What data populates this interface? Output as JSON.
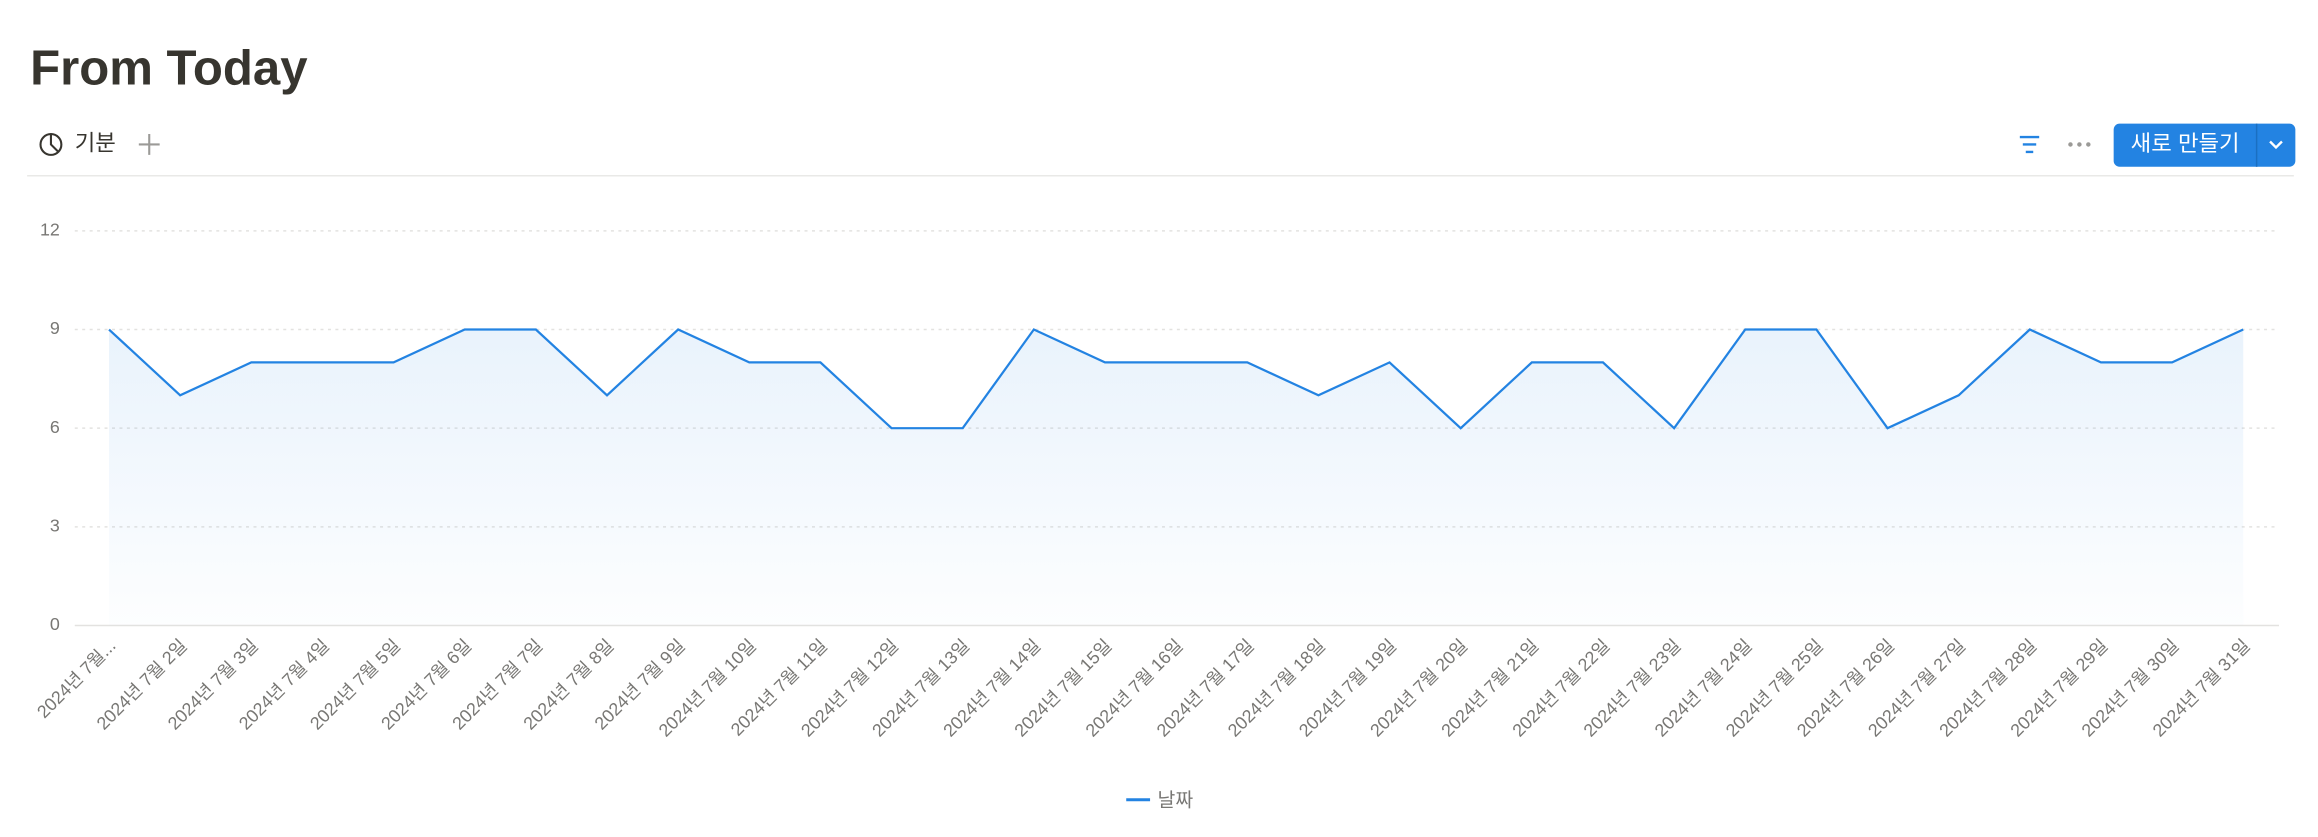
{
  "header": {
    "title": "From Today",
    "view_tab": "기분",
    "new_button": "새로 만들기"
  },
  "chart_data": {
    "type": "line",
    "categories": [
      "2024년 7월...",
      "2024년 7월 2일",
      "2024년 7월 3일",
      "2024년 7월 4일",
      "2024년 7월 5일",
      "2024년 7월 6일",
      "2024년 7월 7일",
      "2024년 7월 8일",
      "2024년 7월 9일",
      "2024년 7월 10일",
      "2024년 7월 11일",
      "2024년 7월 12일",
      "2024년 7월 13일",
      "2024년 7월 14일",
      "2024년 7월 15일",
      "2024년 7월 16일",
      "2024년 7월 17일",
      "2024년 7월 18일",
      "2024년 7월 19일",
      "2024년 7월 20일",
      "2024년 7월 21일",
      "2024년 7월 22일",
      "2024년 7월 23일",
      "2024년 7월 24일",
      "2024년 7월 25일",
      "2024년 7월 26일",
      "2024년 7월 27일",
      "2024년 7월 28일",
      "2024년 7월 29일",
      "2024년 7월 30일",
      "2024년 7월 31일"
    ],
    "series": [
      {
        "name": "날짜",
        "color": "#2383e2",
        "values": [
          9,
          7,
          8,
          8,
          8,
          9,
          9,
          7,
          9,
          8,
          8,
          6,
          6,
          9,
          8,
          8,
          8,
          7,
          8,
          6,
          8,
          8,
          6,
          9,
          9,
          6,
          7,
          9,
          8,
          8,
          9
        ]
      }
    ],
    "ylim": [
      0,
      12
    ],
    "yticks": [
      0,
      3,
      6,
      9,
      12
    ],
    "grid": true
  }
}
